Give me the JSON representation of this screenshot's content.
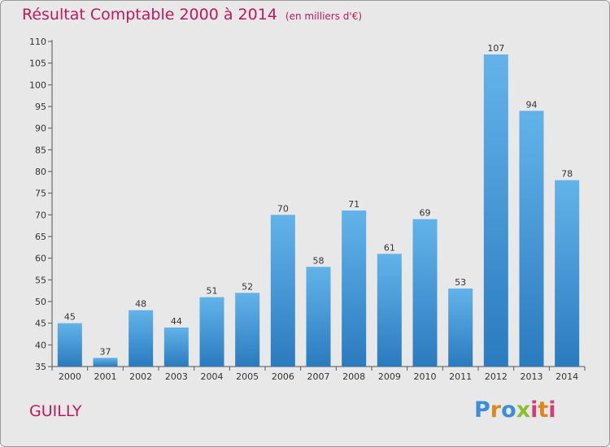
{
  "chart_data": {
    "type": "bar",
    "title": "Résultat Comptable 2000 à 2014",
    "subtitle": "(en milliers d'€)",
    "categories": [
      "2000",
      "2001",
      "2002",
      "2003",
      "2004",
      "2005",
      "2006",
      "2007",
      "2008",
      "2009",
      "2010",
      "2011",
      "2012",
      "2013",
      "2014"
    ],
    "values": [
      45,
      37,
      48,
      44,
      51,
      52,
      70,
      58,
      71,
      61,
      69,
      53,
      107,
      94,
      78
    ],
    "ylim": [
      35,
      110
    ],
    "yticks": [
      35,
      40,
      45,
      50,
      55,
      60,
      65,
      70,
      75,
      80,
      85,
      90,
      95,
      100,
      105,
      110
    ],
    "grid": false,
    "bar_color_top": "#63b3ea",
    "bar_color_bottom": "#2a7bbf"
  },
  "footer": {
    "commune": "GUILLY",
    "logo_text": "Proxiti",
    "logo_colors": [
      "#3b8fd6",
      "#e0861a",
      "#8bbf2f",
      "#d83b7a"
    ]
  }
}
